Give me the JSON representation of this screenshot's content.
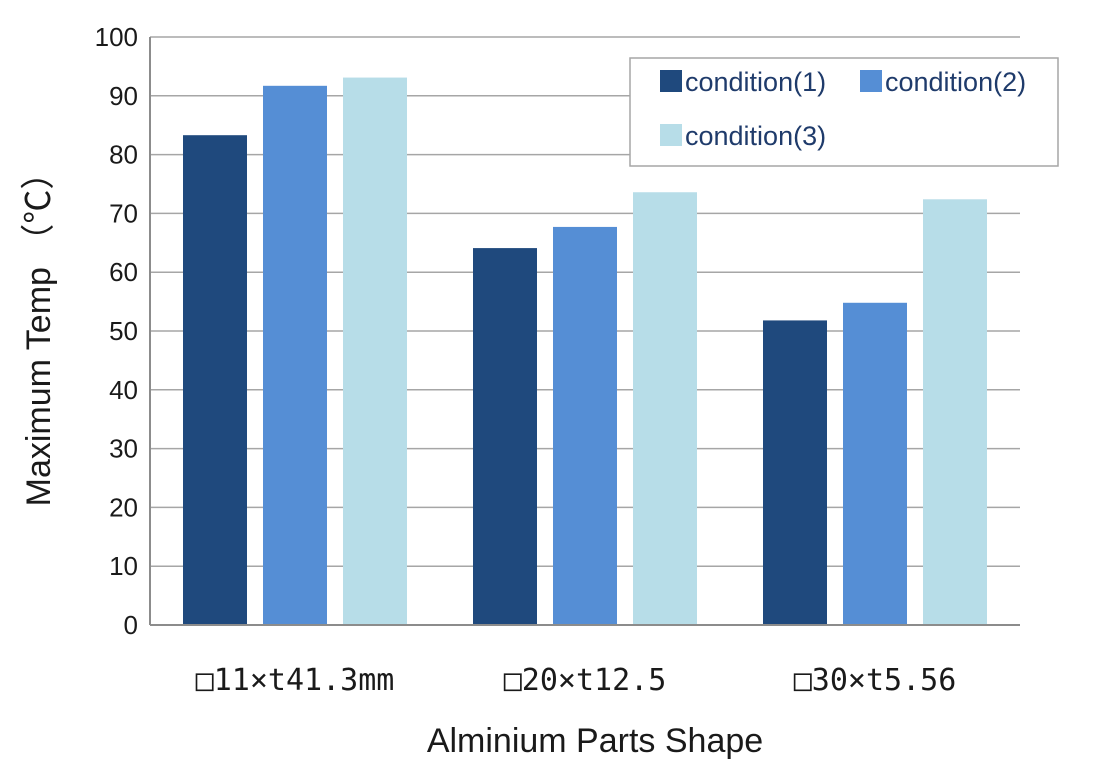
{
  "chart_data": {
    "type": "bar",
    "title": "",
    "xlabel": "Alminium Parts Shape",
    "ylabel": "Maximum Temp （℃）",
    "categories": [
      "□11×t41.3mm",
      "□20×t12.5",
      "□30×t5.56"
    ],
    "series": [
      {
        "name": "condition(1)",
        "values": [
          83.3,
          64.1,
          51.8
        ],
        "color": "#1f497d"
      },
      {
        "name": "condition(2)",
        "values": [
          91.7,
          67.7,
          54.8
        ],
        "color": "#558ed5"
      },
      {
        "name": "condition(3)",
        "values": [
          93.1,
          73.6,
          72.4
        ],
        "color": "#b7dde8"
      }
    ],
    "ylim": [
      0,
      100
    ],
    "yticks": [
      0,
      10,
      20,
      30,
      40,
      50,
      60,
      70,
      80,
      90,
      100
    ],
    "grid": true,
    "legend_position": "top-right"
  }
}
